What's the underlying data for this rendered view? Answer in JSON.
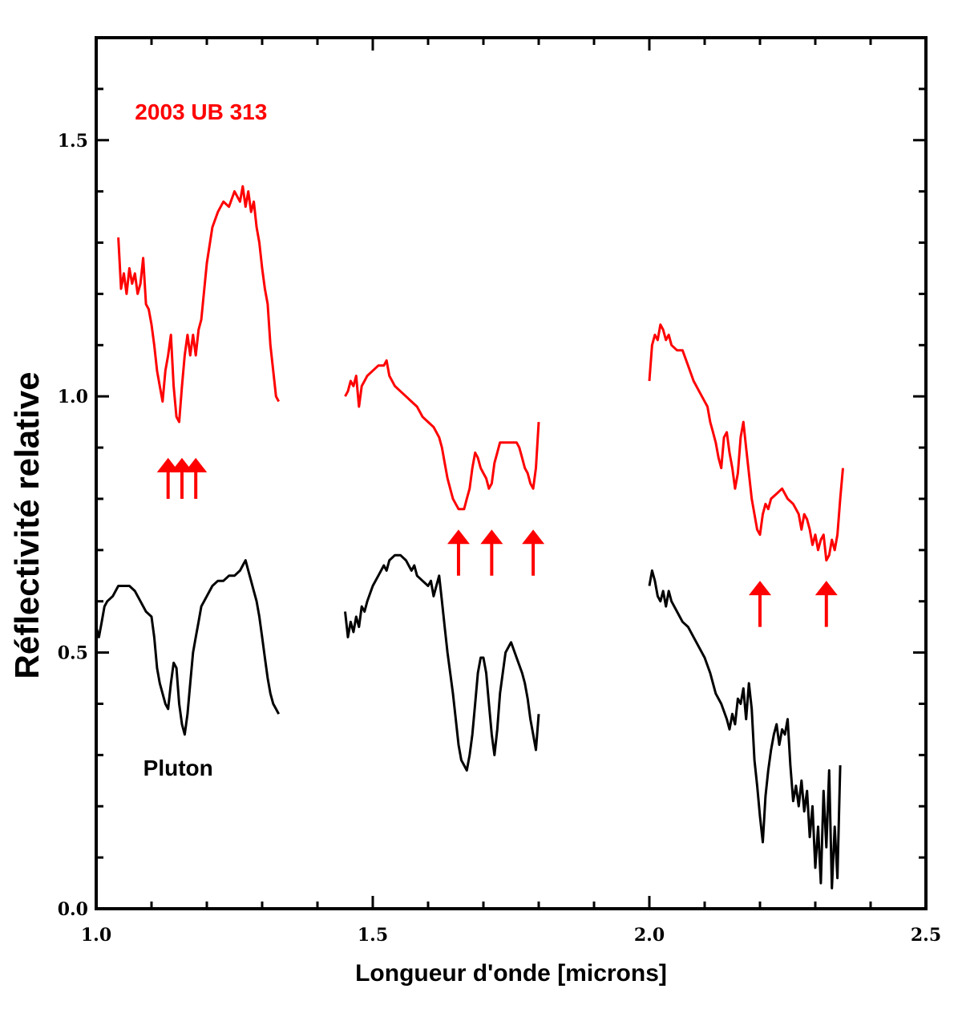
{
  "chart_data": {
    "type": "line",
    "title": "",
    "xlabel": "Longueur d'onde [microns]",
    "ylabel": "Réflectivité relative",
    "xlim": [
      1.0,
      2.5
    ],
    "ylim": [
      0.0,
      1.7
    ],
    "x_ticks": [
      1.0,
      1.5,
      2.0,
      2.5
    ],
    "x_tick_labels": [
      "1.0",
      "1.5",
      "2.0",
      "2.5"
    ],
    "x_minor_step": 0.1,
    "y_ticks": [
      0.0,
      0.5,
      1.0,
      1.5
    ],
    "y_tick_labels": [
      "0.0",
      "0.5",
      "1.0",
      "1.5"
    ],
    "y_minor_step": 0.1,
    "grid": false,
    "legend": "none",
    "series": [
      {
        "name": "2003 UB 313",
        "color": "#ff0000",
        "segments": [
          {
            "x": [
              1.04,
              1.045,
              1.05,
              1.055,
              1.06,
              1.065,
              1.07,
              1.075,
              1.08,
              1.085,
              1.09,
              1.095,
              1.1,
              1.105,
              1.11,
              1.115,
              1.12,
              1.125,
              1.13,
              1.135,
              1.14,
              1.145,
              1.15,
              1.155,
              1.16,
              1.165,
              1.17,
              1.175,
              1.18,
              1.185,
              1.19,
              1.2,
              1.21,
              1.22,
              1.23,
              1.24,
              1.25,
              1.26,
              1.265,
              1.27,
              1.275,
              1.28,
              1.285,
              1.29,
              1.295,
              1.3,
              1.305,
              1.31,
              1.315,
              1.32,
              1.325,
              1.33
            ],
            "y": [
              1.31,
              1.21,
              1.24,
              1.2,
              1.25,
              1.22,
              1.24,
              1.2,
              1.22,
              1.27,
              1.18,
              1.17,
              1.14,
              1.1,
              1.05,
              1.02,
              0.99,
              1.05,
              1.08,
              1.12,
              1.02,
              0.96,
              0.95,
              1.02,
              1.08,
              1.12,
              1.08,
              1.12,
              1.08,
              1.13,
              1.15,
              1.26,
              1.33,
              1.36,
              1.38,
              1.37,
              1.4,
              1.38,
              1.41,
              1.37,
              1.4,
              1.36,
              1.38,
              1.33,
              1.3,
              1.25,
              1.21,
              1.18,
              1.1,
              1.05,
              1.0,
              0.99
            ]
          },
          {
            "x": [
              1.45,
              1.455,
              1.46,
              1.465,
              1.47,
              1.475,
              1.48,
              1.485,
              1.49,
              1.5,
              1.51,
              1.52,
              1.525,
              1.53,
              1.54,
              1.55,
              1.56,
              1.57,
              1.58,
              1.59,
              1.6,
              1.61,
              1.62,
              1.625,
              1.63,
              1.635,
              1.64,
              1.645,
              1.65,
              1.655,
              1.66,
              1.665,
              1.67,
              1.675,
              1.68,
              1.685,
              1.69,
              1.695,
              1.7,
              1.705,
              1.71,
              1.715,
              1.72,
              1.725,
              1.73,
              1.74,
              1.75,
              1.76,
              1.765,
              1.77,
              1.775,
              1.78,
              1.785,
              1.79,
              1.795,
              1.8
            ],
            "y": [
              1.0,
              1.01,
              1.03,
              1.02,
              1.04,
              0.98,
              1.02,
              1.03,
              1.04,
              1.05,
              1.06,
              1.06,
              1.07,
              1.04,
              1.02,
              1.01,
              1.0,
              0.99,
              0.98,
              0.96,
              0.95,
              0.94,
              0.92,
              0.9,
              0.87,
              0.84,
              0.82,
              0.8,
              0.79,
              0.78,
              0.78,
              0.78,
              0.8,
              0.82,
              0.86,
              0.89,
              0.88,
              0.86,
              0.85,
              0.84,
              0.82,
              0.83,
              0.87,
              0.89,
              0.91,
              0.91,
              0.91,
              0.91,
              0.9,
              0.88,
              0.86,
              0.85,
              0.83,
              0.82,
              0.86,
              0.95
            ]
          },
          {
            "x": [
              2.0,
              2.005,
              2.01,
              2.015,
              2.02,
              2.025,
              2.03,
              2.035,
              2.04,
              2.05,
              2.06,
              2.07,
              2.08,
              2.09,
              2.1,
              2.105,
              2.11,
              2.115,
              2.12,
              2.125,
              2.13,
              2.135,
              2.14,
              2.145,
              2.15,
              2.155,
              2.16,
              2.165,
              2.17,
              2.175,
              2.18,
              2.185,
              2.19,
              2.195,
              2.2,
              2.205,
              2.21,
              2.215,
              2.22,
              2.23,
              2.24,
              2.25,
              2.26,
              2.265,
              2.27,
              2.275,
              2.28,
              2.285,
              2.29,
              2.295,
              2.3,
              2.305,
              2.31,
              2.315,
              2.32,
              2.325,
              2.33,
              2.335,
              2.34,
              2.345,
              2.35
            ],
            "y": [
              1.03,
              1.1,
              1.12,
              1.11,
              1.14,
              1.13,
              1.11,
              1.12,
              1.1,
              1.09,
              1.09,
              1.06,
              1.03,
              1.01,
              0.99,
              0.98,
              0.95,
              0.93,
              0.91,
              0.88,
              0.86,
              0.92,
              0.93,
              0.89,
              0.86,
              0.82,
              0.85,
              0.92,
              0.95,
              0.9,
              0.85,
              0.8,
              0.77,
              0.74,
              0.73,
              0.77,
              0.79,
              0.78,
              0.8,
              0.81,
              0.82,
              0.8,
              0.79,
              0.78,
              0.77,
              0.74,
              0.77,
              0.76,
              0.74,
              0.71,
              0.73,
              0.7,
              0.72,
              0.73,
              0.68,
              0.69,
              0.72,
              0.7,
              0.73,
              0.8,
              0.86
            ]
          }
        ]
      },
      {
        "name": "Pluton",
        "color": "#000000",
        "segments": [
          {
            "x": [
              1.0,
              1.005,
              1.01,
              1.015,
              1.02,
              1.03,
              1.04,
              1.05,
              1.06,
              1.07,
              1.08,
              1.09,
              1.1,
              1.105,
              1.11,
              1.115,
              1.12,
              1.125,
              1.13,
              1.135,
              1.14,
              1.145,
              1.15,
              1.155,
              1.16,
              1.165,
              1.17,
              1.175,
              1.18,
              1.185,
              1.19,
              1.2,
              1.21,
              1.22,
              1.23,
              1.24,
              1.25,
              1.26,
              1.265,
              1.27,
              1.275,
              1.28,
              1.285,
              1.29,
              1.295,
              1.3,
              1.305,
              1.31,
              1.315,
              1.32,
              1.325,
              1.33
            ],
            "y": [
              0.55,
              0.53,
              0.56,
              0.59,
              0.6,
              0.61,
              0.63,
              0.63,
              0.63,
              0.62,
              0.6,
              0.58,
              0.57,
              0.53,
              0.47,
              0.44,
              0.42,
              0.4,
              0.39,
              0.44,
              0.48,
              0.47,
              0.4,
              0.36,
              0.34,
              0.38,
              0.44,
              0.5,
              0.53,
              0.56,
              0.59,
              0.61,
              0.63,
              0.64,
              0.64,
              0.65,
              0.65,
              0.66,
              0.67,
              0.68,
              0.66,
              0.64,
              0.62,
              0.6,
              0.57,
              0.53,
              0.49,
              0.45,
              0.42,
              0.4,
              0.39,
              0.38
            ]
          },
          {
            "x": [
              1.45,
              1.455,
              1.46,
              1.465,
              1.47,
              1.475,
              1.48,
              1.485,
              1.49,
              1.5,
              1.51,
              1.52,
              1.525,
              1.53,
              1.54,
              1.55,
              1.56,
              1.57,
              1.575,
              1.58,
              1.59,
              1.6,
              1.605,
              1.61,
              1.615,
              1.62,
              1.625,
              1.63,
              1.635,
              1.64,
              1.645,
              1.65,
              1.655,
              1.66,
              1.665,
              1.67,
              1.675,
              1.68,
              1.685,
              1.69,
              1.695,
              1.7,
              1.705,
              1.71,
              1.715,
              1.72,
              1.725,
              1.73,
              1.74,
              1.75,
              1.76,
              1.77,
              1.775,
              1.78,
              1.785,
              1.79,
              1.795,
              1.8
            ],
            "y": [
              0.58,
              0.53,
              0.56,
              0.54,
              0.57,
              0.55,
              0.59,
              0.58,
              0.6,
              0.63,
              0.65,
              0.67,
              0.66,
              0.68,
              0.69,
              0.69,
              0.68,
              0.66,
              0.67,
              0.65,
              0.64,
              0.63,
              0.64,
              0.61,
              0.63,
              0.65,
              0.6,
              0.55,
              0.5,
              0.46,
              0.42,
              0.37,
              0.32,
              0.29,
              0.28,
              0.27,
              0.3,
              0.34,
              0.4,
              0.46,
              0.49,
              0.49,
              0.46,
              0.4,
              0.34,
              0.3,
              0.35,
              0.42,
              0.5,
              0.52,
              0.49,
              0.46,
              0.44,
              0.41,
              0.37,
              0.34,
              0.31,
              0.38
            ]
          },
          {
            "x": [
              2.0,
              2.005,
              2.01,
              2.015,
              2.02,
              2.025,
              2.03,
              2.035,
              2.04,
              2.05,
              2.06,
              2.07,
              2.08,
              2.09,
              2.1,
              2.11,
              2.12,
              2.13,
              2.14,
              2.145,
              2.15,
              2.155,
              2.16,
              2.165,
              2.17,
              2.175,
              2.18,
              2.185,
              2.19,
              2.195,
              2.2,
              2.205,
              2.21,
              2.215,
              2.22,
              2.225,
              2.23,
              2.235,
              2.24,
              2.245,
              2.25,
              2.255,
              2.26,
              2.265,
              2.27,
              2.275,
              2.28,
              2.285,
              2.29,
              2.295,
              2.3,
              2.305,
              2.31,
              2.315,
              2.32,
              2.325,
              2.33,
              2.335,
              2.34,
              2.345
            ],
            "y": [
              0.63,
              0.66,
              0.64,
              0.61,
              0.6,
              0.62,
              0.59,
              0.62,
              0.6,
              0.58,
              0.56,
              0.55,
              0.53,
              0.51,
              0.49,
              0.46,
              0.42,
              0.4,
              0.37,
              0.35,
              0.38,
              0.36,
              0.41,
              0.4,
              0.43,
              0.37,
              0.44,
              0.39,
              0.29,
              0.24,
              0.18,
              0.13,
              0.22,
              0.27,
              0.31,
              0.34,
              0.36,
              0.32,
              0.35,
              0.34,
              0.37,
              0.28,
              0.21,
              0.24,
              0.2,
              0.25,
              0.19,
              0.23,
              0.14,
              0.2,
              0.08,
              0.16,
              0.05,
              0.23,
              0.12,
              0.27,
              0.04,
              0.16,
              0.06,
              0.28
            ]
          }
        ]
      }
    ],
    "annotations": [
      {
        "text": "2003 UB 313",
        "color": "#ff0000",
        "x": 1.07,
        "y": 1.54
      },
      {
        "text": "Pluton",
        "color": "#000000",
        "x": 1.085,
        "y": 0.26
      }
    ],
    "arrows": {
      "color": "#ff0000",
      "items": [
        {
          "x": 1.13,
          "y_base": 0.8,
          "y_tip": 0.88
        },
        {
          "x": 1.155,
          "y_base": 0.8,
          "y_tip": 0.88
        },
        {
          "x": 1.18,
          "y_base": 0.8,
          "y_tip": 0.88
        },
        {
          "x": 1.655,
          "y_base": 0.65,
          "y_tip": 0.74
        },
        {
          "x": 1.715,
          "y_base": 0.65,
          "y_tip": 0.74
        },
        {
          "x": 1.79,
          "y_base": 0.65,
          "y_tip": 0.74
        },
        {
          "x": 2.2,
          "y_base": 0.55,
          "y_tip": 0.64
        },
        {
          "x": 2.32,
          "y_base": 0.55,
          "y_tip": 0.64
        }
      ]
    }
  }
}
